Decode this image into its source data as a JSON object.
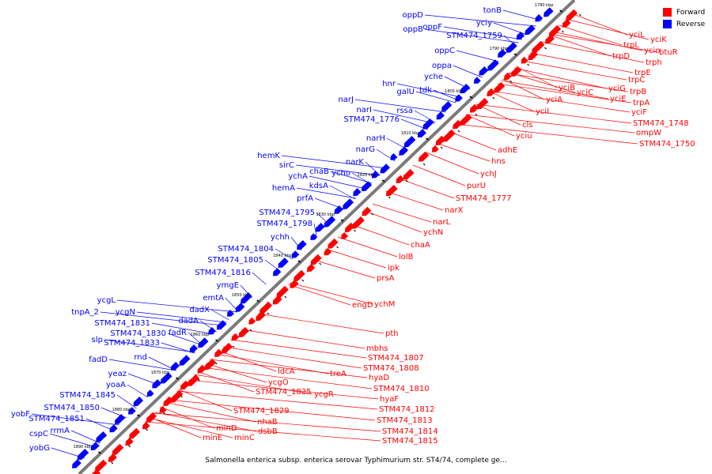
{
  "legend": {
    "forward_label": "Forward",
    "reverse_label": "Reverse",
    "forward_color": "#ff0000",
    "reverse_color": "#0000ff"
  },
  "caption": "Salmonella enterica subsp. enterica serovar Typhimurium str. ST4/74, complete ge...",
  "kbp_ticks": [
    "1780 kbp",
    "1790 kbp",
    "1800 kbp",
    "1810 kbp",
    "1820 kbp",
    "1830 kbp",
    "1840 kbp",
    "1850 kbp",
    "1860 kbp",
    "1870 kbp",
    "1880 kbp",
    "1890 kbp"
  ],
  "reverse_genes": [
    "tonB",
    "oppD",
    "yciy",
    "oppF",
    "oppB",
    "STM474_1759",
    "oppC",
    "oppa",
    "yche",
    "hnr",
    "tdk",
    "galU",
    "rssa",
    "narJ",
    "narI",
    "STM474_1776",
    "narH",
    "narG",
    "hemK",
    "narK",
    "sirC",
    "ycho",
    "chaB",
    "ychA",
    "kdsA",
    "hemA",
    "prfA",
    "STM474_1795",
    "STM474_1798",
    "ychh",
    "STM474_1804",
    "STM474_1805",
    "STM474_1816",
    "ymgE",
    "emtA",
    "dadX",
    "dadA",
    "ycgL",
    "fadR",
    "tnpA_2",
    "ycgN",
    "STM474_1831",
    "STM474_1830",
    "slp",
    "rnd",
    "STM474_1833",
    "fadD",
    "yeaz",
    "yoaA",
    "STM474_1845",
    "STM474_1850",
    "yobF",
    "STM474_1851",
    "rrmA",
    "cspC",
    "yobG"
  ],
  "forward_genes": [
    "yciL",
    "yciK",
    "trpL",
    "ycio",
    "btuR",
    "trpD",
    "trph",
    "trpE",
    "trpC",
    "trpB",
    "yciB",
    "yciG",
    "yciC",
    "trpA",
    "yciE",
    "yciF",
    "yciA",
    "yciI",
    "STM474_1748",
    "ompW",
    "yciu",
    "cls",
    "STM474_1750",
    "adhE",
    "hns",
    "ychJ",
    "purU",
    "STM474_1777",
    "narX",
    "narL",
    "ychN",
    "chaA",
    "lolB",
    "ipk",
    "prsA",
    "ychM",
    "engD",
    "pth",
    "mbhs",
    "STM474_1807",
    "STM474_1808",
    "ldcA",
    "treA",
    "ycgO",
    "hyaD",
    "STM474_1810",
    "STM474_1825",
    "ycgR",
    "hyaF",
    "STM474_1812",
    "STM474_1829",
    "STM474_1813",
    "nhaB",
    "dsbB",
    "STM474_1814",
    "minD",
    "minE",
    "minC",
    "STM474_1815"
  ]
}
